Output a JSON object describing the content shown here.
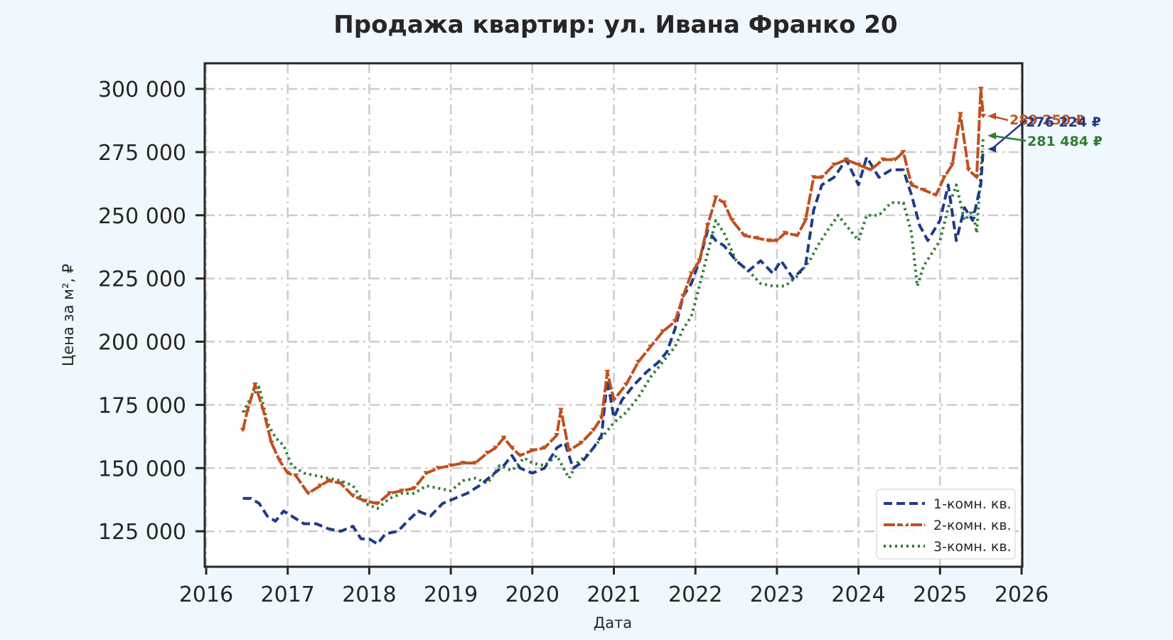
{
  "chart_data": {
    "type": "line",
    "title": "Продажа квартир: ул. Ивана Франко 20",
    "xlabel": "Дата",
    "ylabel": "Цена за м², ₽",
    "xlim": [
      2016,
      2026
    ],
    "ylim": [
      110000,
      310000
    ],
    "x_ticks": [
      "2016",
      "2017",
      "2018",
      "2019",
      "2020",
      "2021",
      "2022",
      "2023",
      "2024",
      "2025",
      "2026"
    ],
    "y_ticks": [
      "125 000",
      "150 000",
      "175 000",
      "200 000",
      "225 000",
      "250 000",
      "275 000",
      "300 000"
    ],
    "y_tick_values": [
      125000,
      150000,
      175000,
      200000,
      225000,
      250000,
      275000,
      300000
    ],
    "grid": true,
    "legend_position": "lower right",
    "series": [
      {
        "name": "1-комн. кв.",
        "color": "#1f3a8a",
        "style": "dashed",
        "x": [
          2016.45,
          2016.55,
          2016.65,
          2016.75,
          2016.85,
          2016.95,
          2017.05,
          2017.2,
          2017.35,
          2017.5,
          2017.65,
          2017.8,
          2017.9,
          2018.0,
          2018.1,
          2018.2,
          2018.35,
          2018.5,
          2018.6,
          2018.75,
          2018.9,
          2019.05,
          2019.2,
          2019.35,
          2019.5,
          2019.65,
          2019.75,
          2019.85,
          2020.0,
          2020.15,
          2020.3,
          2020.4,
          2020.5,
          2020.6,
          2020.75,
          2020.85,
          2020.92,
          2021.0,
          2021.1,
          2021.25,
          2021.4,
          2021.55,
          2021.65,
          2021.75,
          2021.85,
          2021.95,
          2022.05,
          2022.15,
          2022.25,
          2022.35,
          2022.5,
          2022.65,
          2022.8,
          2022.95,
          2023.05,
          2023.2,
          2023.35,
          2023.45,
          2023.55,
          2023.7,
          2023.85,
          2024.0,
          2024.1,
          2024.25,
          2024.4,
          2024.55,
          2024.65,
          2024.75,
          2024.85,
          2025.0,
          2025.1,
          2025.2,
          2025.3,
          2025.4,
          2025.5,
          2025.53
        ],
        "values": [
          138000,
          138000,
          136000,
          131000,
          129000,
          133000,
          131000,
          128000,
          128000,
          126000,
          125000,
          127000,
          122000,
          122000,
          120000,
          124000,
          125000,
          130000,
          133000,
          131000,
          136000,
          138000,
          140000,
          143000,
          147000,
          151000,
          155000,
          150000,
          148000,
          150000,
          158000,
          160000,
          150000,
          152000,
          158000,
          163000,
          185000,
          170000,
          177000,
          183000,
          188000,
          192000,
          196000,
          205000,
          218000,
          223000,
          232000,
          244000,
          240000,
          238000,
          232000,
          228000,
          232000,
          227000,
          232000,
          225000,
          230000,
          252000,
          262000,
          265000,
          272000,
          262000,
          273000,
          265000,
          268000,
          268000,
          258000,
          246000,
          240000,
          248000,
          262000,
          240000,
          253000,
          248000,
          262000,
          276224
        ]
      },
      {
        "name": "2-комн. кв.",
        "color": "#c0501f",
        "style": "solid-triangle-marker",
        "x": [
          2016.45,
          2016.5,
          2016.6,
          2016.7,
          2016.8,
          2016.9,
          2017.0,
          2017.1,
          2017.25,
          2017.4,
          2017.5,
          2017.65,
          2017.8,
          2017.95,
          2018.1,
          2018.25,
          2018.4,
          2018.55,
          2018.7,
          2018.85,
          2019.0,
          2019.15,
          2019.3,
          2019.45,
          2019.55,
          2019.65,
          2019.75,
          2019.85,
          2020.0,
          2020.15,
          2020.3,
          2020.35,
          2020.45,
          2020.6,
          2020.75,
          2020.85,
          2020.92,
          2021.0,
          2021.15,
          2021.3,
          2021.45,
          2021.6,
          2021.75,
          2021.85,
          2021.95,
          2022.05,
          2022.15,
          2022.25,
          2022.35,
          2022.45,
          2022.6,
          2022.75,
          2022.9,
          2023.0,
          2023.1,
          2023.25,
          2023.35,
          2023.45,
          2023.55,
          2023.7,
          2023.85,
          2024.0,
          2024.15,
          2024.3,
          2024.45,
          2024.55,
          2024.65,
          2024.8,
          2024.95,
          2025.05,
          2025.15,
          2025.25,
          2025.35,
          2025.45,
          2025.5,
          2025.53
        ],
        "values": [
          165000,
          172000,
          183000,
          173000,
          160000,
          153000,
          148000,
          147000,
          140000,
          143000,
          145000,
          144000,
          139000,
          137000,
          136000,
          140000,
          141000,
          142000,
          148000,
          150000,
          151000,
          152000,
          152000,
          156000,
          158000,
          162000,
          158000,
          155000,
          157000,
          158000,
          163000,
          173000,
          157000,
          160000,
          165000,
          170000,
          188000,
          177000,
          183000,
          192000,
          198000,
          204000,
          208000,
          218000,
          227000,
          232000,
          246000,
          257000,
          255000,
          248000,
          242000,
          241000,
          240000,
          240000,
          243000,
          242000,
          248000,
          265000,
          265000,
          270000,
          272000,
          270000,
          268000,
          272000,
          272000,
          275000,
          262000,
          260000,
          258000,
          265000,
          270000,
          290000,
          268000,
          265000,
          300000,
          289250
        ]
      },
      {
        "name": "3-комн. кв.",
        "color": "#2e7d32",
        "style": "dotted",
        "x": [
          2016.45,
          2016.55,
          2016.65,
          2016.75,
          2016.85,
          2016.95,
          2017.05,
          2017.2,
          2017.35,
          2017.5,
          2017.65,
          2017.8,
          2017.95,
          2018.1,
          2018.25,
          2018.4,
          2018.55,
          2018.7,
          2018.85,
          2019.0,
          2019.15,
          2019.3,
          2019.45,
          2019.6,
          2019.75,
          2019.9,
          2020.0,
          2020.15,
          2020.3,
          2020.45,
          2020.55,
          2020.7,
          2020.85,
          2021.0,
          2021.15,
          2021.3,
          2021.45,
          2021.6,
          2021.75,
          2021.85,
          2021.95,
          2022.05,
          2022.15,
          2022.25,
          2022.35,
          2022.5,
          2022.65,
          2022.8,
          2022.95,
          2023.1,
          2023.25,
          2023.4,
          2023.5,
          2023.6,
          2023.75,
          2023.9,
          2024.0,
          2024.1,
          2024.25,
          2024.4,
          2024.55,
          2024.65,
          2024.72,
          2024.8,
          2024.9,
          2025.0,
          2025.1,
          2025.2,
          2025.3,
          2025.4,
          2025.45,
          2025.53
        ],
        "values": [
          172000,
          178000,
          182000,
          168000,
          162000,
          159000,
          151000,
          148000,
          147000,
          146000,
          145000,
          143000,
          136000,
          134000,
          138000,
          140000,
          140000,
          143000,
          142000,
          141000,
          145000,
          146000,
          144000,
          151000,
          149000,
          154000,
          152000,
          151000,
          155000,
          146000,
          152000,
          156000,
          162000,
          168000,
          172000,
          178000,
          186000,
          192000,
          198000,
          205000,
          210000,
          222000,
          235000,
          248000,
          243000,
          232000,
          228000,
          223000,
          222000,
          222000,
          226000,
          232000,
          238000,
          243000,
          250000,
          244000,
          240000,
          250000,
          250000,
          255000,
          255000,
          243000,
          222000,
          230000,
          235000,
          240000,
          253000,
          262000,
          248000,
          252000,
          243000,
          281484
        ]
      }
    ],
    "annotations": [
      {
        "text": "289 250 ₽",
        "series": "2-комн. кв.",
        "color": "#c0501f"
      },
      {
        "text": "276 224 ₽",
        "series": "1-комн. кв.",
        "color": "#1f3a8a"
      },
      {
        "text": "281 484 ₽",
        "series": "3-комн. кв.",
        "color": "#2e7d32"
      }
    ]
  }
}
